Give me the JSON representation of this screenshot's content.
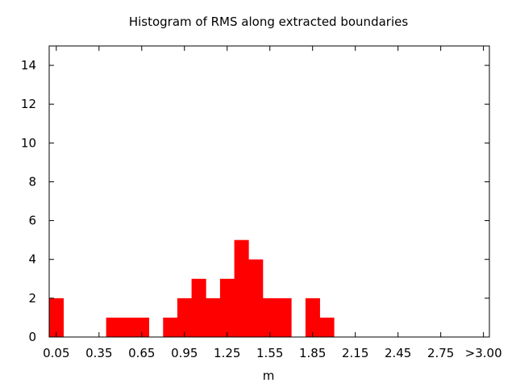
{
  "chart_data": {
    "type": "bar",
    "title": "Histogram of RMS along extracted boundaries",
    "xlabel": "m",
    "ylabel": "",
    "ylim": [
      0,
      15
    ],
    "yticks": [
      0,
      2,
      4,
      6,
      8,
      10,
      12,
      14
    ],
    "xticks": [
      "0.05",
      "0.35",
      "0.65",
      "0.95",
      "1.25",
      "1.55",
      "1.85",
      "2.15",
      "2.45",
      "2.75",
      ">3.00"
    ],
    "bin_width": 0.1,
    "bar_color": "#ff0000",
    "grid": false,
    "legend": "none",
    "categories": [
      "0.05",
      "0.15",
      "0.25",
      "0.35",
      "0.45",
      "0.55",
      "0.65",
      "0.75",
      "0.85",
      "0.95",
      "1.05",
      "1.15",
      "1.25",
      "1.35",
      "1.45",
      "1.55",
      "1.65",
      "1.75",
      "1.85",
      "1.95",
      "2.05",
      "2.15",
      "2.25",
      "2.35",
      "2.45",
      "2.55",
      "2.65",
      "2.75",
      "2.85",
      "2.95",
      ">3.00"
    ],
    "values": [
      2,
      0,
      0,
      0,
      1,
      1,
      1,
      0,
      1,
      2,
      3,
      2,
      3,
      5,
      4,
      2,
      2,
      0,
      2,
      1,
      0,
      0,
      0,
      0,
      0,
      0,
      0,
      0,
      0,
      0,
      0
    ]
  }
}
